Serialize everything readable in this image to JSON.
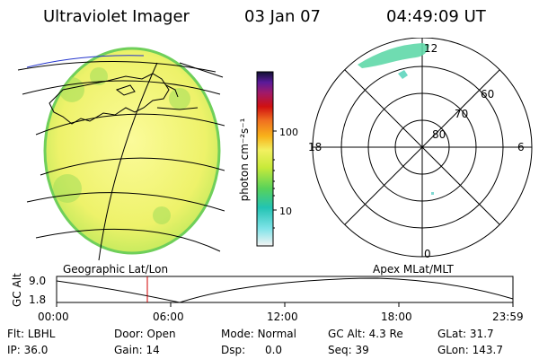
{
  "header": {
    "title": "Ultraviolet Imager",
    "date": "03 Jan 07",
    "time": "04:49:09 UT"
  },
  "colorbar": {
    "unit_label": "photon cm⁻²s⁻¹",
    "ticks": [
      "100",
      "10"
    ]
  },
  "polar_plot": {
    "mlt_labels": {
      "top": "12",
      "bottom": "0",
      "left": "18",
      "right": "6"
    },
    "lat_labels": [
      "60",
      "70",
      "80"
    ]
  },
  "altitude_plot": {
    "ylabel": "GC Alt",
    "yticks": [
      "9.0",
      "1.8"
    ],
    "left_caption": "Geographic Lat/Lon",
    "right_caption": "Apex MLat/MLT",
    "xticks": [
      "00:00",
      "06:00",
      "12:00",
      "18:00",
      "23:59"
    ],
    "cursor_time": "04:49"
  },
  "status": {
    "row1": [
      {
        "label": "Flt:",
        "value": "LBHL"
      },
      {
        "label": "Door:",
        "value": "Open"
      },
      {
        "label": "Mode:",
        "value": "Normal"
      },
      {
        "label": "GC Alt:",
        "value": "4.3 Re"
      },
      {
        "label": "GLat:",
        "value": "31.7"
      }
    ],
    "row2": [
      {
        "label": "IP:",
        "value": "36.0"
      },
      {
        "label": "Gain:",
        "value": "14"
      },
      {
        "label": "Dsp:",
        "value": "0.0"
      },
      {
        "label": "Seq:",
        "value": "39"
      },
      {
        "label": "GLon:",
        "value": "143.7"
      }
    ]
  },
  "colors": {
    "globe_fill": "#eef26a",
    "globe_edge": "#7ed36a",
    "cursor": "#d00000"
  }
}
